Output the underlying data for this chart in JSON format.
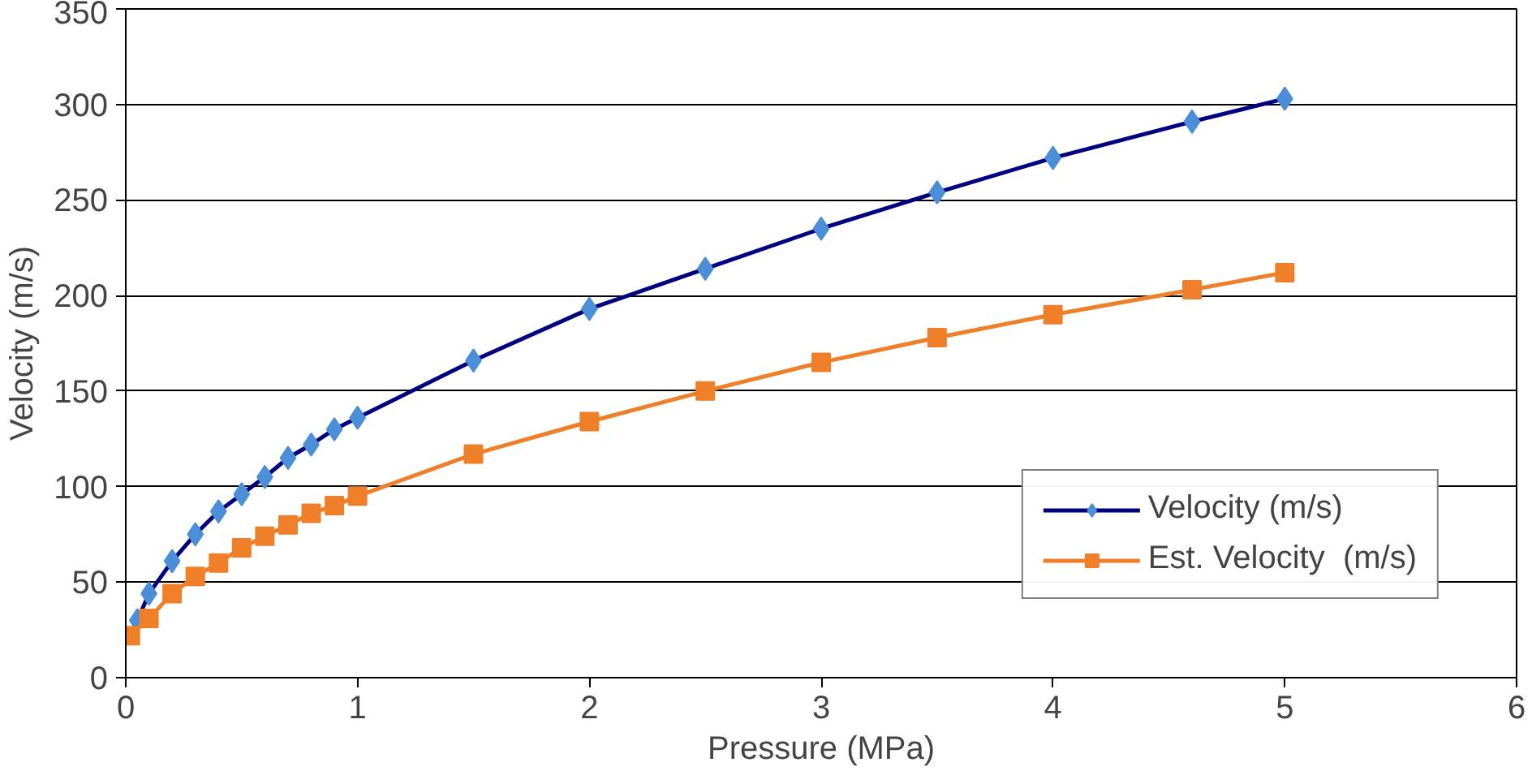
{
  "chart_data": {
    "type": "line",
    "xlabel": "Pressure (MPa)",
    "ylabel": "Velocity (m/s)",
    "xlim": [
      0,
      6
    ],
    "xticks": [
      0,
      1,
      2,
      3,
      4,
      5,
      6
    ],
    "ylim": [
      0,
      350
    ],
    "yticks": [
      0,
      50,
      100,
      150,
      200,
      250,
      300,
      350
    ],
    "grid": "y",
    "legend": "right",
    "series": [
      {
        "name": "Velocity (m/s)",
        "color": "#000080",
        "marker": "diamond",
        "x": [
          0.05,
          0.1,
          0.2,
          0.3,
          0.4,
          0.5,
          0.6,
          0.7,
          0.8,
          0.9,
          1.0,
          1.5,
          2,
          2.5,
          3,
          3.5,
          4,
          4.6,
          5
        ],
        "values": [
          30,
          44,
          61,
          75,
          87,
          96,
          105,
          115,
          122,
          130,
          136,
          166,
          193,
          214,
          235,
          254,
          272,
          291,
          303
        ]
      },
      {
        "name": "Est. Velocity  (m/s)",
        "color": "#f07f2a",
        "marker": "square",
        "x": [
          0.02,
          0.1,
          0.2,
          0.3,
          0.4,
          0.5,
          0.6,
          0.7,
          0.8,
          0.9,
          1.0,
          1.5,
          2,
          2.5,
          3,
          3.5,
          4,
          4.6,
          5
        ],
        "values": [
          22,
          31,
          44,
          53,
          60,
          68,
          74,
          80,
          86,
          90,
          95,
          117,
          134,
          150,
          165,
          178,
          190,
          203,
          212
        ]
      }
    ]
  }
}
